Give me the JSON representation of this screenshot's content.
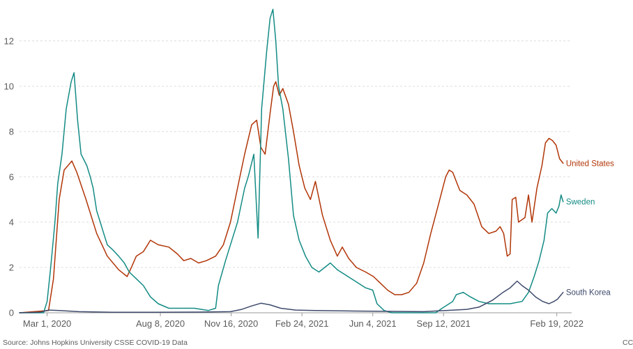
{
  "chart_data": {
    "type": "line",
    "x_type": "date",
    "xlim": [
      "2020-01-22",
      "2022-03-12"
    ],
    "ylim": [
      0,
      13.5
    ],
    "y_ticks": [
      0,
      2,
      4,
      6,
      8,
      10,
      12
    ],
    "x_ticks": [
      {
        "date": "2020-03-01",
        "label": "Mar 1, 2020"
      },
      {
        "date": "2020-08-08",
        "label": "Aug 8, 2020"
      },
      {
        "date": "2020-11-16",
        "label": "Nov 16, 2020"
      },
      {
        "date": "2021-02-24",
        "label": "Feb 24, 2021"
      },
      {
        "date": "2021-06-04",
        "label": "Jun 4, 2021"
      },
      {
        "date": "2021-09-12",
        "label": "Sep 12, 2021"
      },
      {
        "date": "2022-02-19",
        "label": "Feb 19, 2022"
      }
    ],
    "grid": "horizontal dotted",
    "legend": "inline labels at line ends",
    "series": [
      {
        "name": "United States",
        "color": "#b13507",
        "points": [
          [
            "2020-01-22",
            0
          ],
          [
            "2020-03-03",
            0.1
          ],
          [
            "2020-03-10",
            1.5
          ],
          [
            "2020-03-18",
            5.0
          ],
          [
            "2020-03-25",
            6.3
          ],
          [
            "2020-04-05",
            6.7
          ],
          [
            "2020-04-12",
            6.2
          ],
          [
            "2020-04-25",
            5.0
          ],
          [
            "2020-05-10",
            3.5
          ],
          [
            "2020-05-25",
            2.5
          ],
          [
            "2020-06-10",
            1.9
          ],
          [
            "2020-06-22",
            1.6
          ],
          [
            "2020-06-28",
            2.0
          ],
          [
            "2020-07-05",
            2.5
          ],
          [
            "2020-07-15",
            2.7
          ],
          [
            "2020-07-25",
            3.2
          ],
          [
            "2020-08-05",
            3.0
          ],
          [
            "2020-08-20",
            2.9
          ],
          [
            "2020-09-01",
            2.6
          ],
          [
            "2020-09-10",
            2.3
          ],
          [
            "2020-09-20",
            2.4
          ],
          [
            "2020-10-01",
            2.2
          ],
          [
            "2020-10-12",
            2.3
          ],
          [
            "2020-10-25",
            2.5
          ],
          [
            "2020-11-05",
            3.0
          ],
          [
            "2020-11-15",
            4.0
          ],
          [
            "2020-11-25",
            5.5
          ],
          [
            "2020-12-05",
            7.0
          ],
          [
            "2020-12-15",
            8.3
          ],
          [
            "2020-12-22",
            8.5
          ],
          [
            "2020-12-28",
            7.3
          ],
          [
            "2021-01-03",
            7.0
          ],
          [
            "2021-01-10",
            8.8
          ],
          [
            "2021-01-15",
            10.0
          ],
          [
            "2021-01-18",
            10.2
          ],
          [
            "2021-01-23",
            9.6
          ],
          [
            "2021-01-28",
            9.9
          ],
          [
            "2021-02-05",
            9.2
          ],
          [
            "2021-02-12",
            8.0
          ],
          [
            "2021-02-20",
            6.5
          ],
          [
            "2021-02-28",
            5.5
          ],
          [
            "2021-03-08",
            5.0
          ],
          [
            "2021-03-15",
            5.8
          ],
          [
            "2021-03-25",
            4.3
          ],
          [
            "2021-04-05",
            3.2
          ],
          [
            "2021-04-15",
            2.5
          ],
          [
            "2021-04-22",
            2.9
          ],
          [
            "2021-05-01",
            2.4
          ],
          [
            "2021-05-12",
            2.0
          ],
          [
            "2021-05-25",
            1.8
          ],
          [
            "2021-06-05",
            1.6
          ],
          [
            "2021-06-15",
            1.3
          ],
          [
            "2021-06-25",
            1.0
          ],
          [
            "2021-07-05",
            0.8
          ],
          [
            "2021-07-15",
            0.8
          ],
          [
            "2021-07-25",
            0.9
          ],
          [
            "2021-08-05",
            1.3
          ],
          [
            "2021-08-15",
            2.2
          ],
          [
            "2021-08-25",
            3.5
          ],
          [
            "2021-09-05",
            4.8
          ],
          [
            "2021-09-15",
            6.0
          ],
          [
            "2021-09-20",
            6.3
          ],
          [
            "2021-09-25",
            6.2
          ],
          [
            "2021-10-05",
            5.4
          ],
          [
            "2021-10-15",
            5.2
          ],
          [
            "2021-10-25",
            4.8
          ],
          [
            "2021-11-05",
            3.8
          ],
          [
            "2021-11-15",
            3.5
          ],
          [
            "2021-11-25",
            3.6
          ],
          [
            "2021-12-01",
            3.8
          ],
          [
            "2021-12-06",
            3.5
          ],
          [
            "2021-12-11",
            2.5
          ],
          [
            "2021-12-15",
            2.6
          ],
          [
            "2021-12-18",
            5.0
          ],
          [
            "2021-12-23",
            5.1
          ],
          [
            "2021-12-27",
            4.0
          ],
          [
            "2022-01-05",
            4.2
          ],
          [
            "2022-01-10",
            5.2
          ],
          [
            "2022-01-15",
            4.0
          ],
          [
            "2022-01-22",
            5.5
          ],
          [
            "2022-01-29",
            6.5
          ],
          [
            "2022-02-03",
            7.5
          ],
          [
            "2022-02-08",
            7.7
          ],
          [
            "2022-02-13",
            7.6
          ],
          [
            "2022-02-18",
            7.4
          ],
          [
            "2022-02-23",
            6.8
          ],
          [
            "2022-02-28",
            6.6
          ]
        ]
      },
      {
        "name": "Sweden",
        "color": "#138b84",
        "points": [
          [
            "2020-01-22",
            0
          ],
          [
            "2020-02-25",
            0
          ],
          [
            "2020-03-01",
            0.5
          ],
          [
            "2020-03-06",
            2.0
          ],
          [
            "2020-03-12",
            4.0
          ],
          [
            "2020-03-16",
            5.7
          ],
          [
            "2020-03-22",
            7.0
          ],
          [
            "2020-03-28",
            9.0
          ],
          [
            "2020-04-04",
            10.2
          ],
          [
            "2020-04-08",
            10.6
          ],
          [
            "2020-04-13",
            8.5
          ],
          [
            "2020-04-18",
            7.0
          ],
          [
            "2020-04-26",
            6.5
          ],
          [
            "2020-05-01",
            6.0
          ],
          [
            "2020-05-05",
            5.5
          ],
          [
            "2020-05-10",
            4.5
          ],
          [
            "2020-05-15",
            4.0
          ],
          [
            "2020-05-20",
            3.5
          ],
          [
            "2020-05-25",
            3.0
          ],
          [
            "2020-06-01",
            2.8
          ],
          [
            "2020-06-10",
            2.5
          ],
          [
            "2020-06-18",
            2.2
          ],
          [
            "2020-06-25",
            1.8
          ],
          [
            "2020-07-05",
            1.5
          ],
          [
            "2020-07-15",
            1.2
          ],
          [
            "2020-07-25",
            0.7
          ],
          [
            "2020-08-05",
            0.4
          ],
          [
            "2020-08-20",
            0.2
          ],
          [
            "2020-09-05",
            0.2
          ],
          [
            "2020-09-25",
            0.2
          ],
          [
            "2020-10-15",
            0.1
          ],
          [
            "2020-10-25",
            0.2
          ],
          [
            "2020-10-29",
            1.2
          ],
          [
            "2020-11-08",
            2.3
          ],
          [
            "2020-11-18",
            3.3
          ],
          [
            "2020-11-25",
            4.0
          ],
          [
            "2020-12-05",
            5.5
          ],
          [
            "2020-12-10",
            6.0
          ],
          [
            "2020-12-18",
            7.0
          ],
          [
            "2020-12-24",
            3.3
          ],
          [
            "2020-12-29",
            9.0
          ],
          [
            "2021-01-05",
            11.5
          ],
          [
            "2021-01-10",
            13.0
          ],
          [
            "2021-01-14",
            13.4
          ],
          [
            "2021-01-18",
            12.0
          ],
          [
            "2021-01-22",
            10.0
          ],
          [
            "2021-01-28",
            9.0
          ],
          [
            "2021-02-05",
            6.8
          ],
          [
            "2021-02-12",
            4.3
          ],
          [
            "2021-02-20",
            3.2
          ],
          [
            "2021-03-01",
            2.5
          ],
          [
            "2021-03-10",
            2.0
          ],
          [
            "2021-03-20",
            1.8
          ],
          [
            "2021-04-05",
            2.2
          ],
          [
            "2021-04-15",
            1.9
          ],
          [
            "2021-04-25",
            1.7
          ],
          [
            "2021-05-05",
            1.5
          ],
          [
            "2021-05-15",
            1.3
          ],
          [
            "2021-05-25",
            1.1
          ],
          [
            "2021-06-04",
            1.0
          ],
          [
            "2021-06-10",
            0.4
          ],
          [
            "2021-06-20",
            0.1
          ],
          [
            "2021-07-01",
            0
          ],
          [
            "2021-08-01",
            0
          ],
          [
            "2021-09-01",
            0
          ],
          [
            "2021-09-10",
            0.2
          ],
          [
            "2021-09-25",
            0.5
          ],
          [
            "2021-09-30",
            0.8
          ],
          [
            "2021-10-10",
            0.9
          ],
          [
            "2021-10-20",
            0.7
          ],
          [
            "2021-11-01",
            0.5
          ],
          [
            "2021-11-15",
            0.4
          ],
          [
            "2021-12-01",
            0.4
          ],
          [
            "2021-12-15",
            0.4
          ],
          [
            "2022-01-01",
            0.5
          ],
          [
            "2022-01-10",
            0.9
          ],
          [
            "2022-01-18",
            1.6
          ],
          [
            "2022-01-25",
            2.3
          ],
          [
            "2022-02-01",
            3.2
          ],
          [
            "2022-02-06",
            4.4
          ],
          [
            "2022-02-12",
            4.6
          ],
          [
            "2022-02-18",
            4.4
          ],
          [
            "2022-02-22",
            4.7
          ],
          [
            "2022-02-25",
            5.2
          ],
          [
            "2022-02-28",
            4.9
          ]
        ]
      },
      {
        "name": "South Korea",
        "color": "#3e4a6b",
        "points": [
          [
            "2020-01-22",
            0
          ],
          [
            "2020-02-20",
            0.02
          ],
          [
            "2020-03-03",
            0.12
          ],
          [
            "2020-03-18",
            0.1
          ],
          [
            "2020-04-15",
            0.05
          ],
          [
            "2020-06-01",
            0.02
          ],
          [
            "2020-08-01",
            0.02
          ],
          [
            "2020-10-01",
            0.03
          ],
          [
            "2020-11-15",
            0.05
          ],
          [
            "2020-12-01",
            0.15
          ],
          [
            "2020-12-15",
            0.3
          ],
          [
            "2020-12-28",
            0.42
          ],
          [
            "2021-01-10",
            0.35
          ],
          [
            "2021-01-25",
            0.2
          ],
          [
            "2021-02-15",
            0.12
          ],
          [
            "2021-03-15",
            0.1
          ],
          [
            "2021-05-01",
            0.08
          ],
          [
            "2021-07-01",
            0.06
          ],
          [
            "2021-08-15",
            0.05
          ],
          [
            "2021-09-15",
            0.1
          ],
          [
            "2021-10-15",
            0.15
          ],
          [
            "2021-11-01",
            0.25
          ],
          [
            "2021-11-20",
            0.55
          ],
          [
            "2021-12-05",
            0.9
          ],
          [
            "2021-12-15",
            1.1
          ],
          [
            "2021-12-25",
            1.4
          ],
          [
            "2022-01-01",
            1.2
          ],
          [
            "2022-01-10",
            1.0
          ],
          [
            "2022-01-20",
            0.7
          ],
          [
            "2022-01-30",
            0.5
          ],
          [
            "2022-02-08",
            0.4
          ],
          [
            "2022-02-15",
            0.5
          ],
          [
            "2022-02-20",
            0.6
          ],
          [
            "2022-02-28",
            0.9
          ]
        ]
      }
    ]
  },
  "source_note": "Source: Johns Hopkins University CSSE COVID-19 Data",
  "license_note": "CC"
}
